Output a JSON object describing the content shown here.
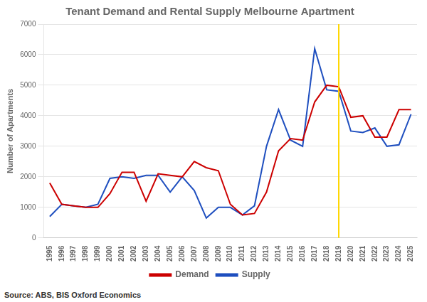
{
  "chart_data": {
    "type": "line",
    "title": "Tenant Demand and Rental Supply Melbourne Apartment",
    "y_label": "Number of Apartments",
    "source": "Source: ABS, BIS Oxford Economics",
    "x": [
      1995,
      1996,
      1997,
      1998,
      1999,
      2000,
      2001,
      2002,
      2003,
      2004,
      2005,
      2006,
      2007,
      2008,
      2009,
      2010,
      2011,
      2012,
      2013,
      2014,
      2015,
      2016,
      2017,
      2018,
      2019,
      2020,
      2021,
      2022,
      2023,
      2024,
      2025
    ],
    "series": [
      {
        "name": "Demand",
        "color": "#CC0000",
        "values": [
          1800,
          1100,
          1050,
          1000,
          1000,
          1450,
          2150,
          2150,
          1200,
          2100,
          2050,
          2000,
          2500,
          2300,
          2200,
          1100,
          750,
          800,
          1500,
          2850,
          3250,
          3200,
          4450,
          5000,
          4950,
          3950,
          4000,
          3300,
          3300,
          4200,
          4200
        ]
      },
      {
        "name": "Supply",
        "color": "#1F4FBF",
        "values": [
          700,
          1100,
          1050,
          1000,
          1100,
          1950,
          2000,
          1950,
          2050,
          2050,
          1500,
          2000,
          1550,
          650,
          1000,
          1000,
          750,
          1050,
          3000,
          4200,
          3200,
          3000,
          6200,
          4850,
          4800,
          3500,
          3450,
          3600,
          3000,
          3050,
          4050
        ]
      }
    ],
    "annotations": [
      {
        "x": 2019,
        "color": "#FFD700"
      }
    ],
    "xlim": [
      1994.5,
      2025.5
    ],
    "xticks": [
      1995,
      1996,
      1997,
      1998,
      1999,
      2000,
      2001,
      2002,
      2003,
      2004,
      2005,
      2006,
      2007,
      2008,
      2009,
      2010,
      2011,
      2012,
      2013,
      2014,
      2015,
      2016,
      2017,
      2018,
      2019,
      2020,
      2021,
      2022,
      2023,
      2024,
      2025
    ],
    "ylim": [
      0,
      7000
    ],
    "yticks": [
      0,
      1000,
      2000,
      3000,
      4000,
      5000,
      6000,
      7000
    ],
    "grid": "y",
    "legend": "bottom"
  }
}
